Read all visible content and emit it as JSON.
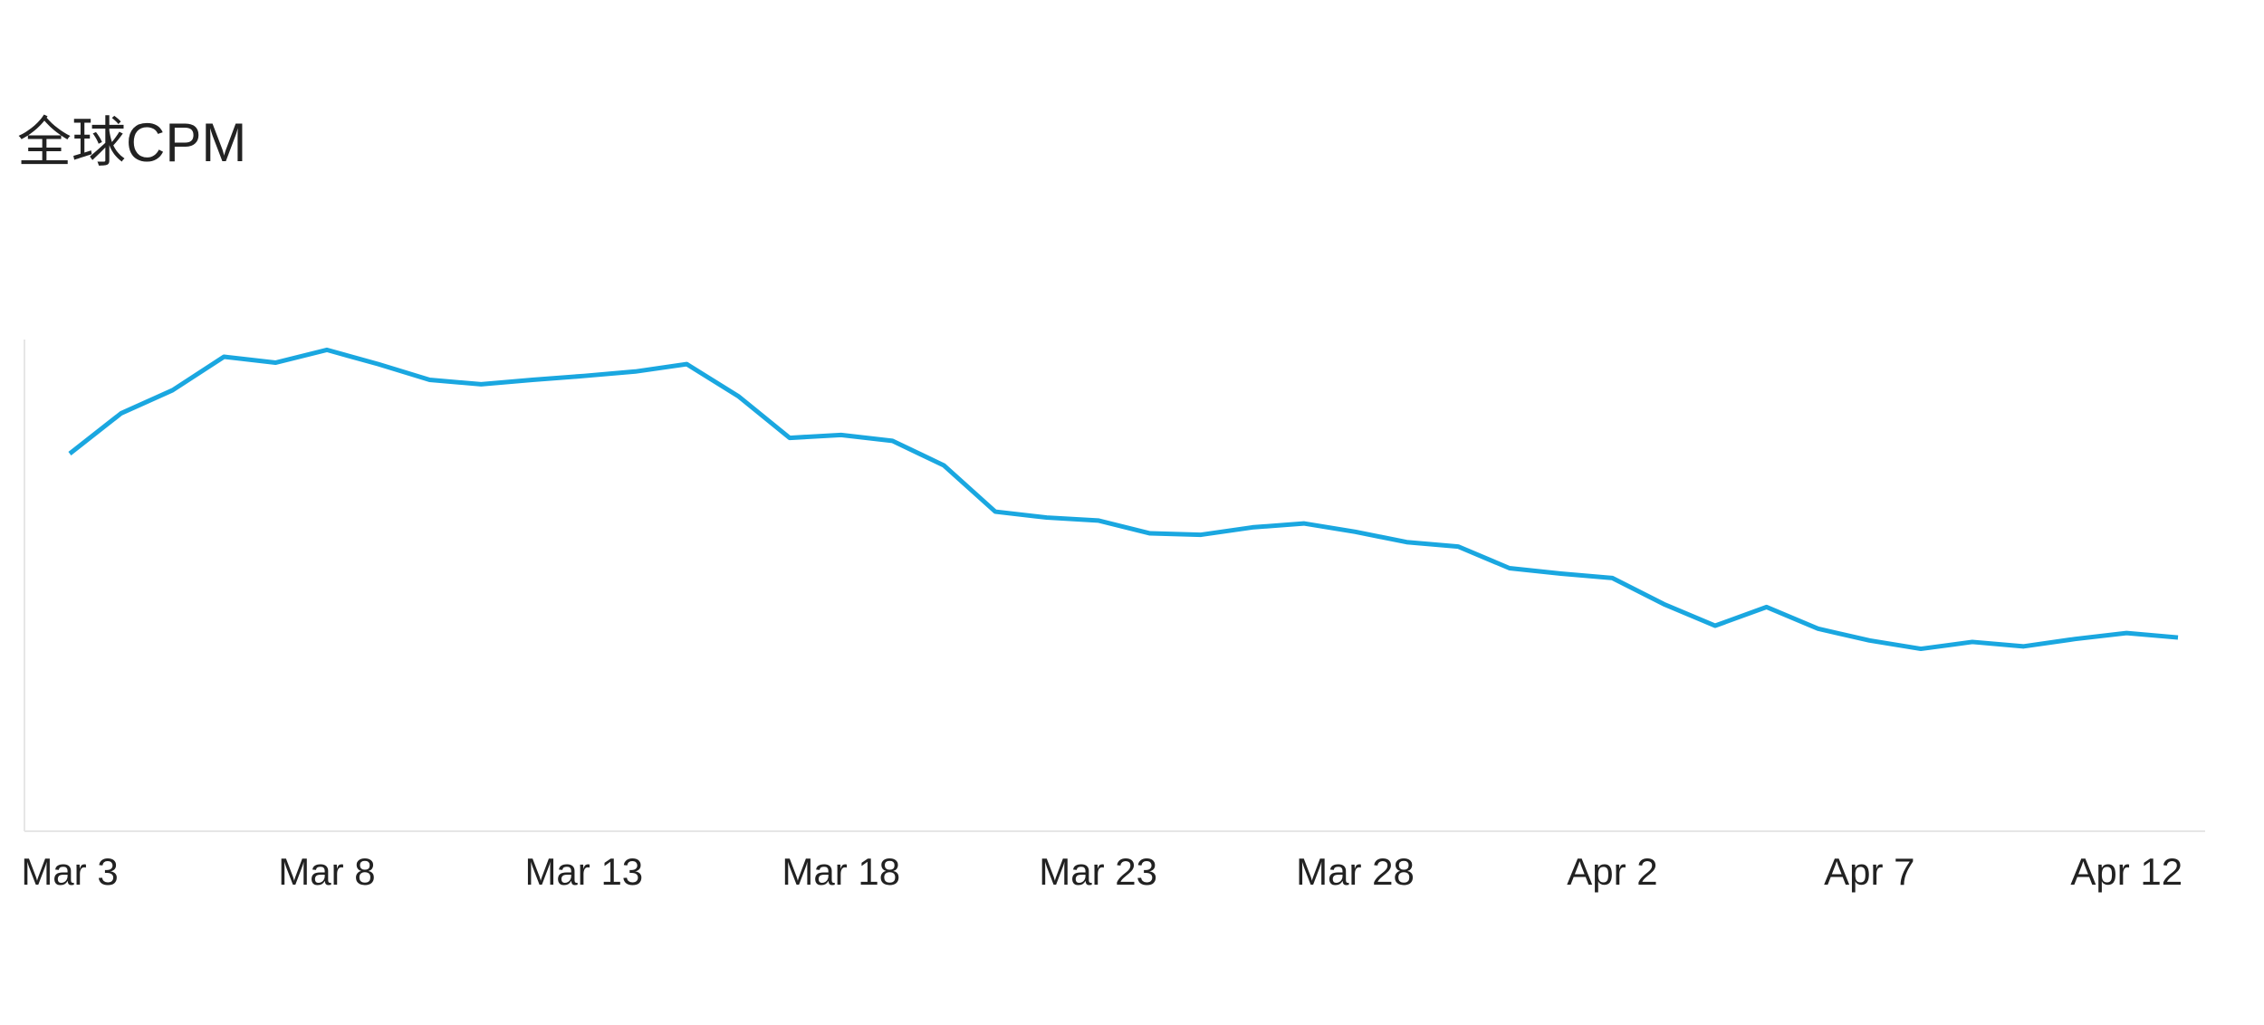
{
  "chart_data": {
    "type": "line",
    "title": "全球CPM",
    "categories": [
      "Mar 3",
      null,
      null,
      null,
      null,
      "Mar 8",
      null,
      null,
      null,
      null,
      "Mar 13",
      null,
      null,
      null,
      null,
      "Mar 18",
      null,
      null,
      null,
      null,
      "Mar 23",
      null,
      null,
      null,
      null,
      "Mar 28",
      null,
      null,
      null,
      null,
      "Apr 2",
      null,
      null,
      null,
      null,
      "Apr 7",
      null,
      null,
      null,
      null,
      "Apr 12",
      null
    ],
    "series": [
      {
        "name": "CPM",
        "color": "#1aa7e0",
        "values": [
          76.8,
          85.0,
          89.7,
          96.5,
          95.3,
          97.9,
          95.0,
          91.8,
          90.9,
          91.8,
          92.6,
          93.5,
          95.0,
          88.5,
          80.0,
          80.6,
          79.4,
          74.4,
          65.0,
          63.8,
          63.2,
          60.6,
          60.3,
          61.8,
          62.6,
          60.9,
          58.8,
          57.9,
          53.5,
          52.4,
          51.5,
          46.2,
          41.8,
          45.6,
          41.2,
          38.8,
          37.1,
          38.5,
          37.6,
          39.1,
          40.3,
          39.4
        ]
      }
    ],
    "ylim": [
      0,
      100
    ]
  }
}
